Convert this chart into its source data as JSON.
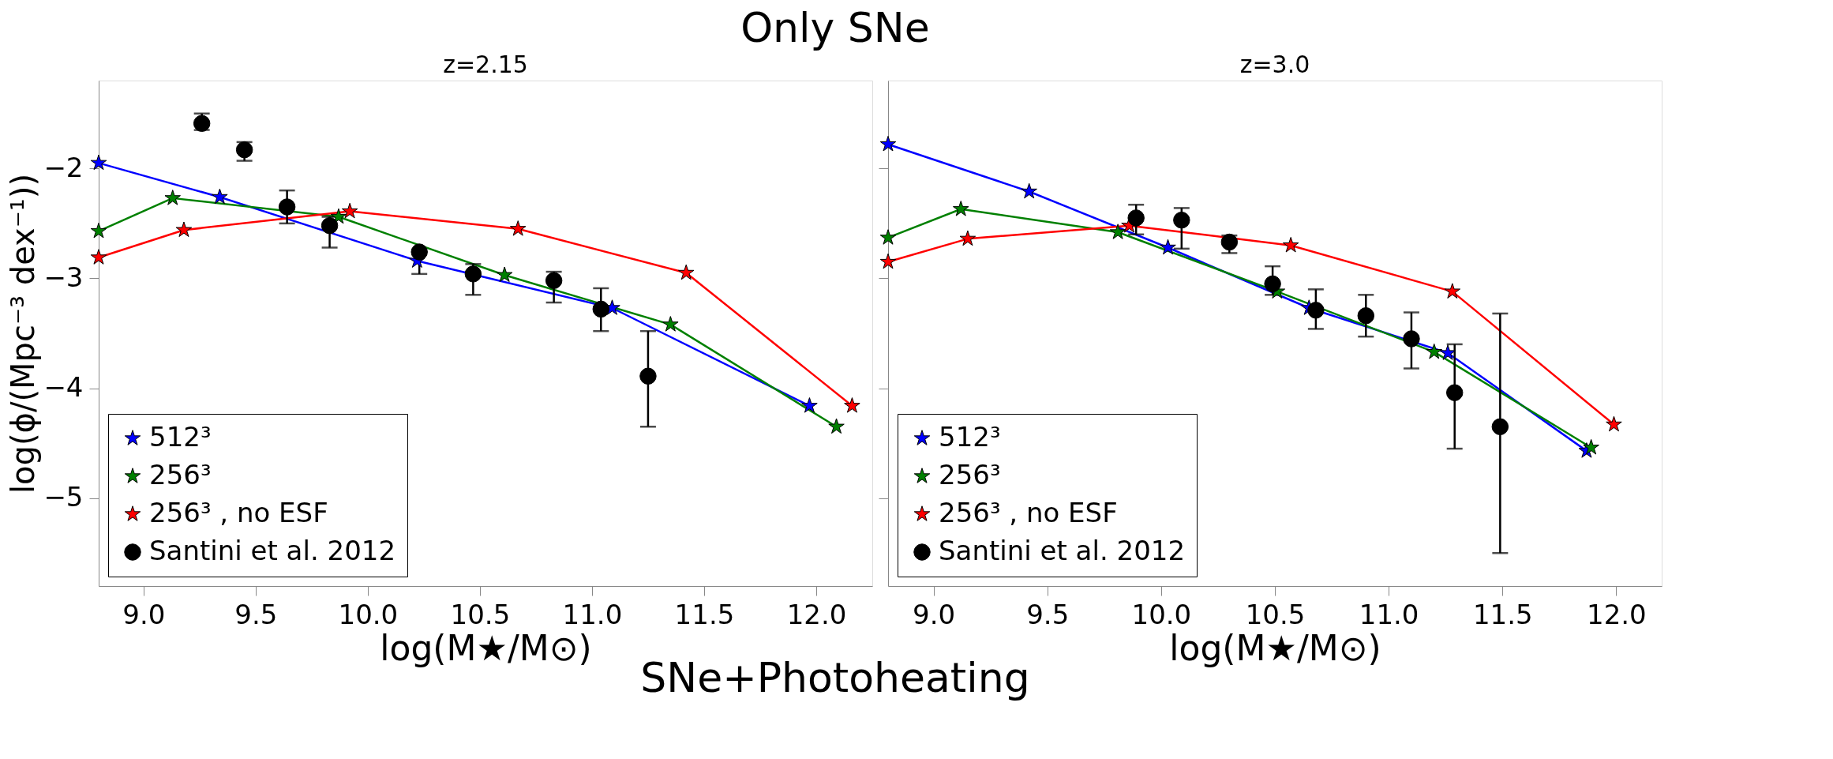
{
  "chart_data": [
    {
      "type": "line",
      "title": "z=2.15",
      "xlabel": "log(M★/M⊙)",
      "ylabel": "log(ϕ/(Mpc⁻³ dex⁻¹))",
      "xlim": [
        8.8,
        12.25
      ],
      "ylim": [
        -5.8,
        -1.2
      ],
      "xticks": [
        {
          "value": 9,
          "label": "9.0"
        },
        {
          "value": 9.5,
          "label": "9.5"
        },
        {
          "value": 10,
          "label": "10.0"
        },
        {
          "value": 10.5,
          "label": "10.5"
        },
        {
          "value": 11,
          "label": "11.0"
        },
        {
          "value": 11.5,
          "label": "11.5"
        },
        {
          "value": 12,
          "label": "12.0"
        }
      ],
      "yticks": [
        {
          "value": -2,
          "label": "−2"
        },
        {
          "value": -3,
          "label": "−3"
        },
        {
          "value": -4,
          "label": "−4"
        },
        {
          "value": -5,
          "label": "−5"
        }
      ],
      "grid": false,
      "legend": "bottom left",
      "marker": "star",
      "line_style": "solid",
      "annotations": [
        "Only SNe",
        "SNe+Photoheating"
      ],
      "series": [
        {
          "name": "512³",
          "color": "#0000ff",
          "x": [
            8.8,
            9.34,
            10.22,
            11.09,
            11.97
          ],
          "values": [
            -1.95,
            -2.26,
            -2.84,
            -3.27,
            -4.16
          ]
        },
        {
          "name": "256³",
          "color": "#008000",
          "x": [
            8.8,
            9.13,
            9.87,
            10.61,
            11.35,
            12.09
          ],
          "values": [
            -2.57,
            -2.27,
            -2.44,
            -2.97,
            -3.42,
            -4.35
          ]
        },
        {
          "name": "256³ , no ESF",
          "color": "#ff0000",
          "x": [
            8.8,
            9.18,
            9.92,
            10.67,
            11.42,
            12.16
          ],
          "values": [
            -2.81,
            -2.56,
            -2.39,
            -2.55,
            -2.95,
            -4.16
          ]
        },
        {
          "name": "Santini et al. 2012",
          "color": "#000000",
          "type": "scatter",
          "marker": "circle",
          "x": [
            9.26,
            9.45,
            9.64,
            9.83,
            10.23,
            10.47,
            10.83,
            11.04,
            11.25
          ],
          "values": [
            -1.59,
            -1.83,
            -2.35,
            -2.52,
            -2.76,
            -2.96,
            -3.02,
            -3.28,
            -3.89
          ],
          "errors": [
            [
              -1.65,
              -1.5
            ],
            [
              -1.93,
              -1.76
            ],
            [
              -2.5,
              -2.2
            ],
            [
              -2.72,
              -2.44
            ],
            [
              -2.96,
              -2.76
            ],
            [
              -3.15,
              -2.87
            ],
            [
              -3.22,
              -2.94
            ],
            [
              -3.48,
              -3.09
            ],
            [
              -4.35,
              -3.48
            ]
          ]
        }
      ]
    },
    {
      "type": "line",
      "title": "z=3.0",
      "xlabel": "log(M★/M⊙)",
      "xlim": [
        8.8,
        12.2
      ],
      "ylim": [
        -5.8,
        -1.2
      ],
      "tick_labels": "x",
      "xticks": [
        {
          "value": 9,
          "label": "9.0"
        },
        {
          "value": 9.5,
          "label": "9.5"
        },
        {
          "value": 10,
          "label": "10.0"
        },
        {
          "value": 10.5,
          "label": "10.5"
        },
        {
          "value": 11,
          "label": "11.0"
        },
        {
          "value": 11.5,
          "label": "11.5"
        },
        {
          "value": 12,
          "label": "12.0"
        }
      ],
      "yticks": [
        {
          "value": -2,
          "label": null
        },
        {
          "value": -3,
          "label": null
        },
        {
          "value": -4,
          "label": null
        },
        {
          "value": -5,
          "label": null
        }
      ],
      "grid": false,
      "legend": "bottom left",
      "marker": "star",
      "line_style": "solid",
      "series": [
        {
          "name": "512³",
          "color": "#0000ff",
          "x": [
            8.8,
            9.42,
            10.03,
            10.65,
            11.26,
            11.87
          ],
          "values": [
            -1.78,
            -2.21,
            -2.72,
            -3.27,
            -3.68,
            -4.57
          ]
        },
        {
          "name": "256³",
          "color": "#008000",
          "x": [
            8.8,
            9.12,
            9.81,
            10.51,
            11.2,
            11.89
          ],
          "values": [
            -2.63,
            -2.37,
            -2.58,
            -3.12,
            -3.67,
            -4.54
          ]
        },
        {
          "name": "256³ , no ESF",
          "color": "#ff0000",
          "x": [
            8.8,
            9.15,
            9.86,
            10.57,
            11.28,
            11.99
          ],
          "values": [
            -2.85,
            -2.64,
            -2.52,
            -2.7,
            -3.12,
            -4.33
          ]
        },
        {
          "name": "Santini et al. 2012",
          "color": "#000000",
          "type": "scatter",
          "marker": "circle",
          "x": [
            9.89,
            10.09,
            10.3,
            10.49,
            10.68,
            10.9,
            11.1,
            11.29,
            11.49
          ],
          "values": [
            -2.45,
            -2.47,
            -2.67,
            -3.05,
            -3.29,
            -3.34,
            -3.55,
            -4.04,
            -4.35
          ],
          "errors": [
            [
              -2.6,
              -2.33
            ],
            [
              -2.73,
              -2.36
            ],
            [
              -2.77,
              -2.61
            ],
            [
              -3.15,
              -2.89
            ],
            [
              -3.46,
              -3.1
            ],
            [
              -3.53,
              -3.15
            ],
            [
              -3.82,
              -3.31
            ],
            [
              -4.55,
              -3.6
            ],
            [
              -5.5,
              -3.32
            ]
          ]
        }
      ]
    }
  ]
}
